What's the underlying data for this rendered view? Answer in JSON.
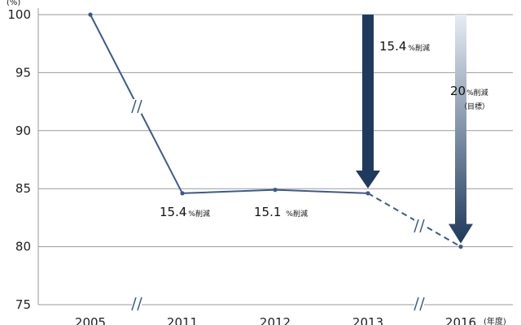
{
  "chart_data": {
    "type": "line",
    "x": [
      "2005",
      "2011",
      "2012",
      "2013",
      "2016"
    ],
    "series": [
      {
        "values": [
          100,
          84.6,
          84.9,
          84.6,
          80.0
        ]
      }
    ],
    "actual_points": 4,
    "target_points": [
      3,
      4
    ],
    "ylim": [
      75,
      100
    ],
    "yticks": [
      "75",
      "80",
      "85",
      "90",
      "95",
      "100"
    ],
    "ylabel_unit": "(%)",
    "xlabel_unit": "(年度)",
    "grid": true,
    "annotations": [
      {
        "big": "15.4",
        "small": "%削減"
      },
      {
        "big": "15.1",
        "small": "%削減"
      },
      {
        "big": "15.4",
        "small": "%削減"
      },
      {
        "big": "20",
        "small": "%削減",
        "note": "（目標）"
      }
    ],
    "colors": {
      "line": "#3a5a8c",
      "arrow_dark": "#1f3a5c",
      "arrow_light": "#dfe6f0",
      "grid": "#9a9a9a"
    }
  }
}
